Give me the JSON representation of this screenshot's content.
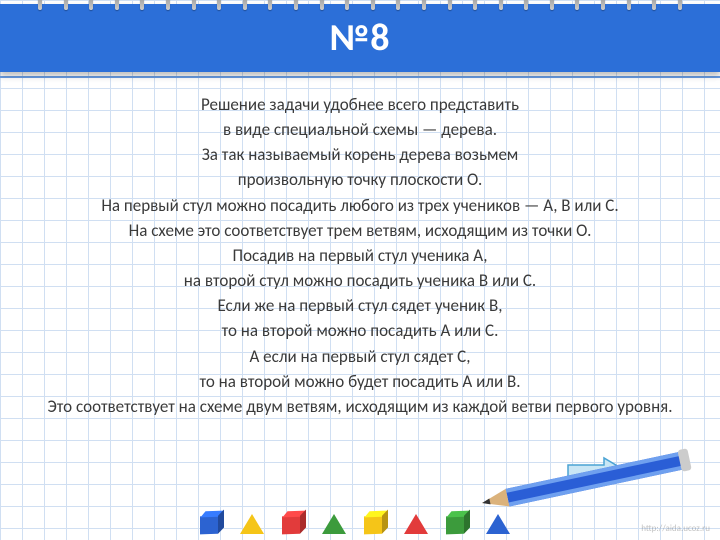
{
  "title": "№8",
  "lines": [
    "Решение задачи удобнее всего представить",
    "в виде специальной схемы — дерева.",
    "За так называемый корень дерева возьмем",
    "произвольную точку плоскости О.",
    "На первый стул можно посадить любого из трех учеников — А, В или С.",
    "На схеме это соответствует трем ветвям, исходящим из точки О.",
    "Посадив на первый стул ученика А,",
    "на второй стул можно посадить ученика В или С.",
    "Если же на первый стул сядет ученик В,",
    "то на второй можно посадить А или С.",
    "А если на первый стул сядет С,",
    "то на второй можно будет посадить А или В.",
    "Это соответствует на схеме двум ветвям, исходящим из каждой ветви первого уровня."
  ],
  "colors": {
    "header_bg": "#2c6fd8",
    "header_text": "#ffffff",
    "body_text": "#3a3a3a",
    "grid": "#d0dff2",
    "arrow_fill": "#c9e6f5",
    "arrow_stroke": "#4aa3d4",
    "pencil_body": "#2a5ed6",
    "pencil_stripe": "#6fa0ef",
    "pencil_wood": "#dbb27b",
    "pencil_tip": "#333333"
  },
  "shapes_row": [
    {
      "type": "cube",
      "color": "#2c63d1"
    },
    {
      "type": "tri",
      "color": "#f5c518"
    },
    {
      "type": "cube",
      "color": "#e23b3b"
    },
    {
      "type": "tri",
      "color": "#3c9b3c"
    },
    {
      "type": "cube",
      "color": "#f5c518"
    },
    {
      "type": "tri",
      "color": "#e23b3b"
    },
    {
      "type": "cube",
      "color": "#3c9b3c"
    },
    {
      "type": "tri",
      "color": "#2c63d1"
    }
  ],
  "watermark": "http://aida.ucoz.ru"
}
